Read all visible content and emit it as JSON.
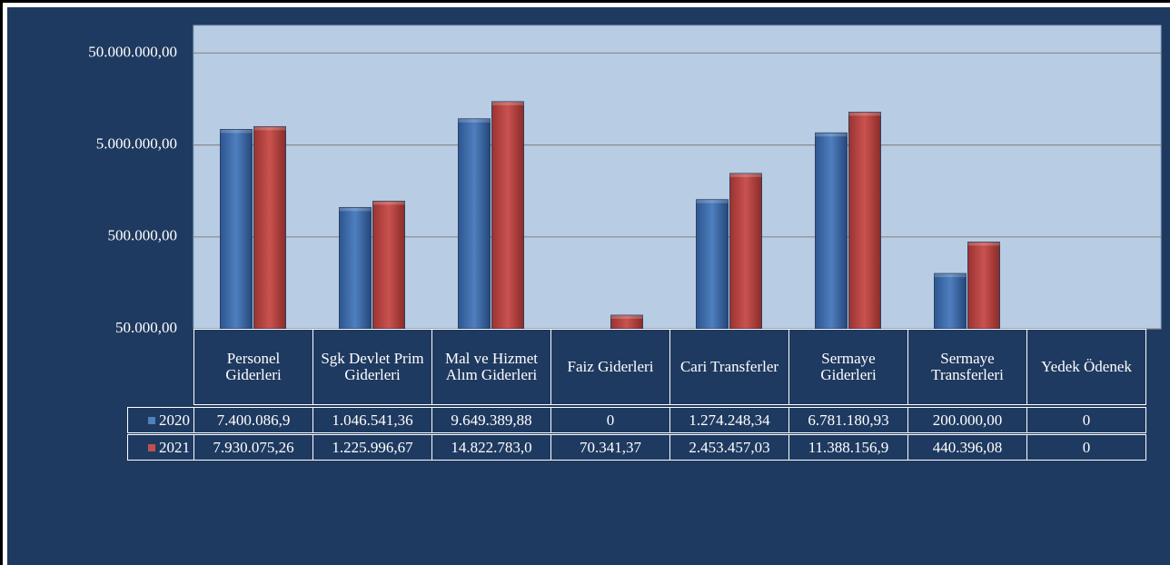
{
  "chart_data": {
    "type": "bar",
    "log_scale": true,
    "grid": true,
    "categories": [
      "Personel Giderleri",
      "Sgk Devlet Prim Giderleri",
      "Mal ve Hizmet Alım Giderleri",
      "Faiz Giderleri",
      "Cari Transferler",
      "Sermaye Giderleri",
      "Sermaye Transferleri",
      "Yedek Ödenek"
    ],
    "series": [
      {
        "name": "2020",
        "color": "#4f81bd",
        "values": [
          7400086.9,
          1046541.36,
          9649389.88,
          0,
          1274248.34,
          6781180.93,
          200000.0,
          0
        ],
        "value_labels": [
          "7.400.086,9",
          "1.046.541,36",
          "9.649.389,88",
          "0",
          "1.274.248,34",
          "6.781.180,93",
          "200.000,00",
          "0"
        ]
      },
      {
        "name": "2021",
        "color": "#c0504d",
        "values": [
          7930075.26,
          1225996.67,
          14822783.0,
          70341.37,
          2453457.03,
          11388156.9,
          440396.08,
          0
        ],
        "value_labels": [
          "7.930.075,26",
          "1.225.996,67",
          "14.822.783,0",
          "70.341,37",
          "2.453.457,03",
          "11.388.156,9",
          "440.396,08",
          "0"
        ]
      }
    ],
    "ylim": [
      50000,
      100000000
    ],
    "yticks": [
      {
        "value": 50000,
        "label": "50.000,00"
      },
      {
        "value": 500000,
        "label": "500.000,00"
      },
      {
        "value": 5000000,
        "label": "5.000.000,00"
      },
      {
        "value": 50000000,
        "label": "50.000.000,00"
      }
    ]
  }
}
